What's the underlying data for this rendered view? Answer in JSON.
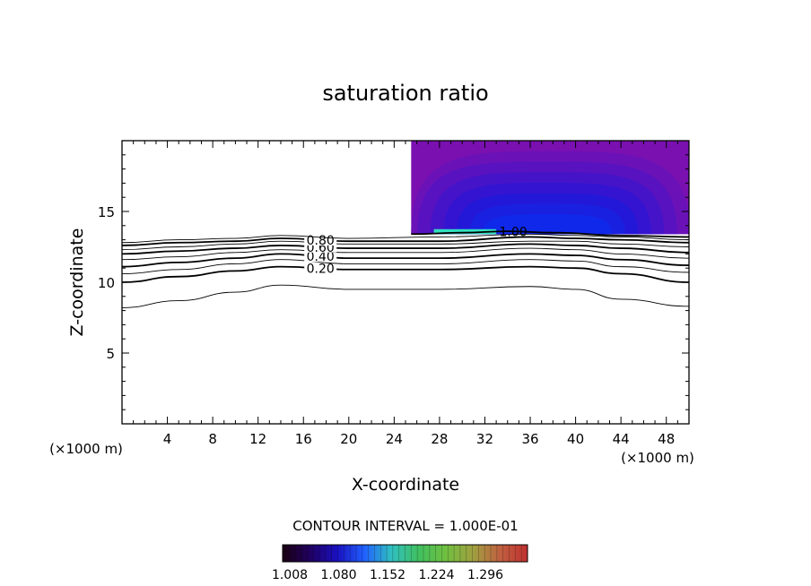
{
  "chart_data": {
    "type": "contour",
    "title": "saturation ratio",
    "xlabel": "X-coordinate",
    "ylabel": "Z-coordinate",
    "x_unit_label": "(×1000 m)",
    "z_unit_label": "(×1000 m)",
    "xlim": [
      0,
      50
    ],
    "ylim": [
      0,
      20
    ],
    "x_ticks": [
      4,
      8,
      12,
      16,
      20,
      24,
      28,
      32,
      36,
      40,
      44,
      48
    ],
    "y_ticks": [
      5,
      10,
      15
    ],
    "contour_interval_text": "CONTOUR INTERVAL = 1.000E-01",
    "contour_levels": [
      {
        "level": 0.1,
        "label": "",
        "points": [
          [
            0,
            8.2
          ],
          [
            5,
            8.7
          ],
          [
            10,
            9.3
          ],
          [
            14,
            9.8
          ],
          [
            20,
            9.5
          ],
          [
            28,
            9.5
          ],
          [
            36,
            9.7
          ],
          [
            40,
            9.5
          ],
          [
            44,
            8.8
          ],
          [
            50,
            8.3
          ]
        ]
      },
      {
        "level": 0.2,
        "label": "0.20",
        "points": [
          [
            0,
            10.0
          ],
          [
            5,
            10.4
          ],
          [
            10,
            10.8
          ],
          [
            14,
            11.1
          ],
          [
            20,
            10.9
          ],
          [
            28,
            10.9
          ],
          [
            36,
            11.1
          ],
          [
            40,
            11.0
          ],
          [
            44,
            10.6
          ],
          [
            50,
            10.0
          ]
        ]
      },
      {
        "level": 0.3,
        "label": "",
        "points": [
          [
            0,
            10.6
          ],
          [
            5,
            10.9
          ],
          [
            10,
            11.3
          ],
          [
            14,
            11.6
          ],
          [
            20,
            11.3
          ],
          [
            28,
            11.3
          ],
          [
            36,
            11.6
          ],
          [
            40,
            11.5
          ],
          [
            44,
            11.1
          ],
          [
            50,
            10.7
          ]
        ]
      },
      {
        "level": 0.4,
        "label": "0.40",
        "points": [
          [
            0,
            11.1
          ],
          [
            5,
            11.4
          ],
          [
            10,
            11.7
          ],
          [
            14,
            12.0
          ],
          [
            20,
            11.7
          ],
          [
            28,
            11.7
          ],
          [
            36,
            12.0
          ],
          [
            40,
            11.9
          ],
          [
            44,
            11.6
          ],
          [
            50,
            11.2
          ]
        ]
      },
      {
        "level": 0.5,
        "label": "",
        "points": [
          [
            0,
            11.6
          ],
          [
            5,
            11.8
          ],
          [
            10,
            12.1
          ],
          [
            14,
            12.3
          ],
          [
            20,
            12.1
          ],
          [
            28,
            12.1
          ],
          [
            36,
            12.4
          ],
          [
            40,
            12.3
          ],
          [
            44,
            12.0
          ],
          [
            50,
            11.7
          ]
        ]
      },
      {
        "level": 0.6,
        "label": "0.60",
        "points": [
          [
            0,
            12.0
          ],
          [
            5,
            12.2
          ],
          [
            10,
            12.4
          ],
          [
            14,
            12.6
          ],
          [
            20,
            12.4
          ],
          [
            28,
            12.4
          ],
          [
            36,
            12.7
          ],
          [
            40,
            12.6
          ],
          [
            44,
            12.4
          ],
          [
            50,
            12.1
          ]
        ]
      },
      {
        "level": 0.7,
        "label": "",
        "points": [
          [
            0,
            12.3
          ],
          [
            5,
            12.5
          ],
          [
            10,
            12.7
          ],
          [
            14,
            12.9
          ],
          [
            20,
            12.7
          ],
          [
            28,
            12.7
          ],
          [
            36,
            12.9
          ],
          [
            40,
            12.9
          ],
          [
            44,
            12.7
          ],
          [
            50,
            12.5
          ]
        ]
      },
      {
        "level": 0.8,
        "label": "0.80",
        "points": [
          [
            0,
            12.6
          ],
          [
            5,
            12.8
          ],
          [
            10,
            12.9
          ],
          [
            14,
            13.1
          ],
          [
            20,
            12.9
          ],
          [
            28,
            12.9
          ],
          [
            36,
            13.2
          ],
          [
            40,
            13.1
          ],
          [
            44,
            13.0
          ],
          [
            50,
            12.8
          ]
        ]
      },
      {
        "level": 0.9,
        "label": "",
        "points": [
          [
            0,
            12.8
          ],
          [
            5,
            13.0
          ],
          [
            10,
            13.1
          ],
          [
            14,
            13.3
          ],
          [
            20,
            13.1
          ],
          [
            28,
            13.2
          ],
          [
            36,
            13.4
          ],
          [
            40,
            13.3
          ],
          [
            44,
            13.2
          ],
          [
            50,
            13.0
          ]
        ]
      },
      {
        "level": 1.0,
        "label": "1.00",
        "points": [
          [
            25.5,
            13.4
          ],
          [
            30,
            13.5
          ],
          [
            34,
            13.6
          ],
          [
            38,
            13.5
          ],
          [
            44,
            13.3
          ],
          [
            50,
            13.2
          ]
        ]
      }
    ],
    "supersaturated_region": {
      "x": [
        25.5,
        50
      ],
      "z_bottom": 13.4,
      "z_top": 20,
      "min_value": 1.008,
      "max_value": 1.33
    },
    "colorbar_ticks": [
      "1.008",
      "1.080",
      "1.152",
      "1.224",
      "1.296"
    ],
    "colorbar_colors": [
      "#1a0010",
      "#200060",
      "#1a10c0",
      "#2060ff",
      "#30c0c0",
      "#40c060",
      "#70c040",
      "#a0a040",
      "#c06040",
      "#c03030"
    ]
  }
}
